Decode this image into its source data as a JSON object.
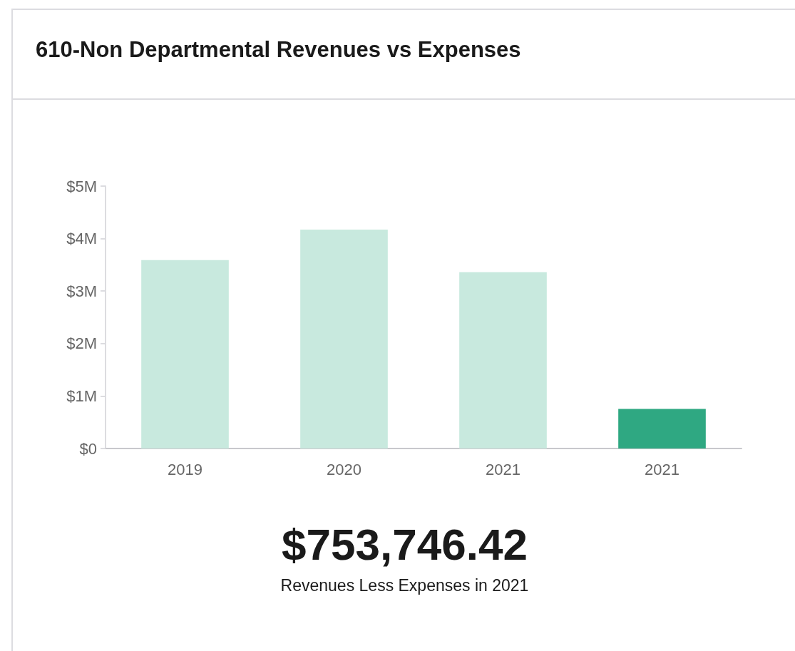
{
  "chart_data": {
    "type": "bar",
    "title": "610-Non Departmental Revenues vs Expenses",
    "categories": [
      "2019",
      "2020",
      "2021",
      "2021"
    ],
    "values": [
      3590000,
      4170000,
      3360000,
      753746.42
    ],
    "colors": [
      "#c8e9de",
      "#c8e9de",
      "#c8e9de",
      "#2fa882"
    ],
    "ylim": [
      0,
      5000000
    ],
    "yticks": [
      {
        "value": 0,
        "label": "$0"
      },
      {
        "value": 1000000,
        "label": "$1M"
      },
      {
        "value": 2000000,
        "label": "$2M"
      },
      {
        "value": 3000000,
        "label": "$3M"
      },
      {
        "value": 4000000,
        "label": "$4M"
      },
      {
        "value": 5000000,
        "label": "$5M"
      }
    ],
    "grid": false,
    "annotations": [
      "$753,746.42",
      "Revenues Less Expenses in 2021"
    ]
  }
}
